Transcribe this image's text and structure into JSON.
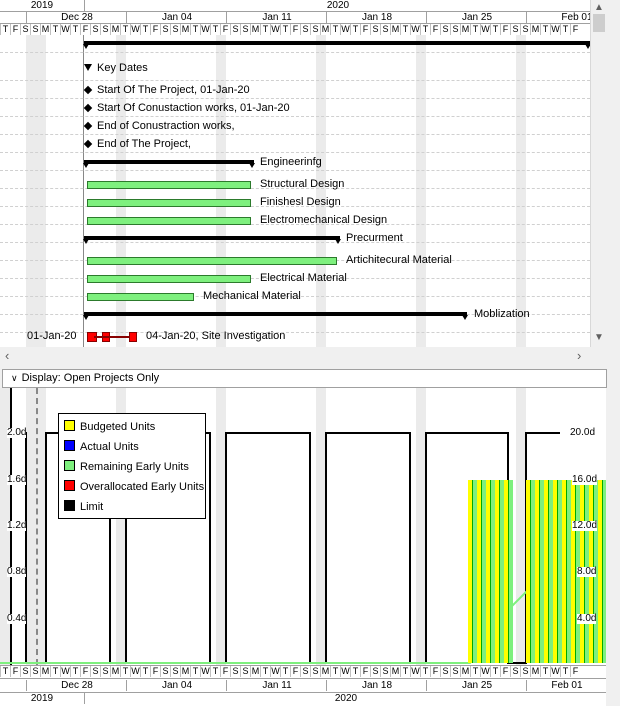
{
  "timescale": {
    "years": [
      "2019",
      "2020"
    ],
    "weeks": [
      "Dec 28",
      "Jan 04",
      "Jan 11",
      "Jan 18",
      "Jan 25",
      "Feb 01"
    ],
    "top_days": [
      "T",
      "F",
      "S",
      "S",
      "M",
      "T",
      "W",
      "T",
      "F",
      "S",
      "S",
      "M",
      "T",
      "W",
      "T",
      "F",
      "S",
      "S",
      "M",
      "T",
      "W",
      "T",
      "F",
      "S",
      "S",
      "M",
      "T",
      "W",
      "T",
      "F",
      "S",
      "S",
      "M",
      "T",
      "W",
      "T",
      "F",
      "S",
      "S",
      "M",
      "T",
      "W",
      "T",
      "F",
      "S",
      "S",
      "M",
      "T",
      "W",
      "T",
      "F",
      "S",
      "S",
      "M",
      "T",
      "W",
      "T",
      "F"
    ],
    "bottom_days": [
      "T",
      "F",
      "S",
      "S",
      "M",
      "T",
      "W",
      "T",
      "F",
      "S",
      "S",
      "M",
      "T",
      "W",
      "T",
      "F",
      "S",
      "S",
      "M",
      "T",
      "W",
      "T",
      "F",
      "S",
      "S",
      "M",
      "T",
      "W",
      "T",
      "F",
      "S",
      "S",
      "M",
      "T",
      "W",
      "T",
      "F",
      "S",
      "S",
      "M",
      "T",
      "W",
      "T",
      "F",
      "S",
      "S",
      "M",
      "T",
      "W",
      "T",
      "F",
      "S",
      "S",
      "M",
      "T",
      "W",
      "T",
      "F"
    ]
  },
  "gantt": {
    "key_dates": "Key Dates",
    "milestones": [
      "Start Of The Project, 01-Jan-20",
      "Start Of Conustaction works, 01-Jan-20",
      "End of Conustraction works,",
      "End of The Project,"
    ],
    "engineering": "Engineerinfg",
    "structural": "Structural Design",
    "finishes": "Finishesl Design",
    "electromech": "Electromechanical Design",
    "procurement": "Precurment",
    "architectural": "Artichitecural Material",
    "electrical": "Electrical Material",
    "mechanical": "Mechanical Material",
    "mobilization": "Moblization",
    "site_start": "01-Jan-20",
    "site_label": "04-Jan-20, Site Investigation"
  },
  "display_filter": "Display: Open Projects Only",
  "histogram": {
    "left_axis": [
      "2.0d",
      "1.6d",
      "1.2d",
      "0.8d",
      "0.4d"
    ],
    "right_axis": [
      "20.0d",
      "16.0d",
      "12.0d",
      "8.0d",
      "4.0d"
    ],
    "legend": [
      {
        "label": "Budgeted Units",
        "color": "#ffff00"
      },
      {
        "label": "Actual Units",
        "color": "#0000ff"
      },
      {
        "label": "Remaining Early Units",
        "color": "#7ef07e"
      },
      {
        "label": "Overallocated Early Units",
        "color": "#ff0000"
      },
      {
        "label": "Limit",
        "color": "#000000"
      }
    ]
  },
  "colors": {
    "task_bar": "#7ef07e",
    "summary_bar": "#000000",
    "critical": "#ff0000"
  }
}
